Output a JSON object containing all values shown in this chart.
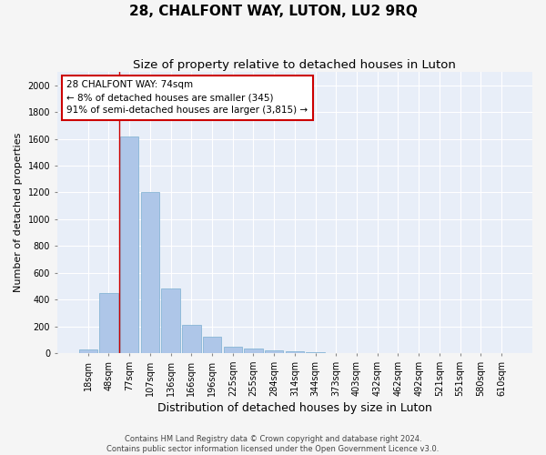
{
  "title": "28, CHALFONT WAY, LUTON, LU2 9RQ",
  "subtitle": "Size of property relative to detached houses in Luton",
  "xlabel": "Distribution of detached houses by size in Luton",
  "ylabel": "Number of detached properties",
  "footer_line1": "Contains HM Land Registry data © Crown copyright and database right 2024.",
  "footer_line2": "Contains public sector information licensed under the Open Government Licence v3.0.",
  "categories": [
    "18sqm",
    "48sqm",
    "77sqm",
    "107sqm",
    "136sqm",
    "166sqm",
    "196sqm",
    "225sqm",
    "255sqm",
    "284sqm",
    "314sqm",
    "344sqm",
    "373sqm",
    "403sqm",
    "432sqm",
    "462sqm",
    "492sqm",
    "521sqm",
    "551sqm",
    "580sqm",
    "610sqm"
  ],
  "values": [
    30,
    450,
    1620,
    1200,
    480,
    210,
    120,
    50,
    35,
    20,
    15,
    5,
    0,
    0,
    0,
    0,
    0,
    0,
    0,
    0,
    0
  ],
  "bar_color": "#aec6e8",
  "bar_edge_color": "#7aaed0",
  "property_line_x": 1.5,
  "annotation_text": "28 CHALFONT WAY: 74sqm\n← 8% of detached houses are smaller (345)\n91% of semi-detached houses are larger (3,815) →",
  "annotation_box_color": "#ffffff",
  "annotation_box_edge_color": "#cc0000",
  "vline_color": "#cc0000",
  "ylim": [
    0,
    2100
  ],
  "yticks": [
    0,
    200,
    400,
    600,
    800,
    1000,
    1200,
    1400,
    1600,
    1800,
    2000
  ],
  "background_color": "#e8eef8",
  "grid_color": "#ffffff",
  "fig_background": "#f5f5f5",
  "title_fontsize": 11,
  "subtitle_fontsize": 9.5,
  "xlabel_fontsize": 9,
  "ylabel_fontsize": 8,
  "tick_fontsize": 7,
  "annotation_fontsize": 7.5,
  "footer_fontsize": 6
}
